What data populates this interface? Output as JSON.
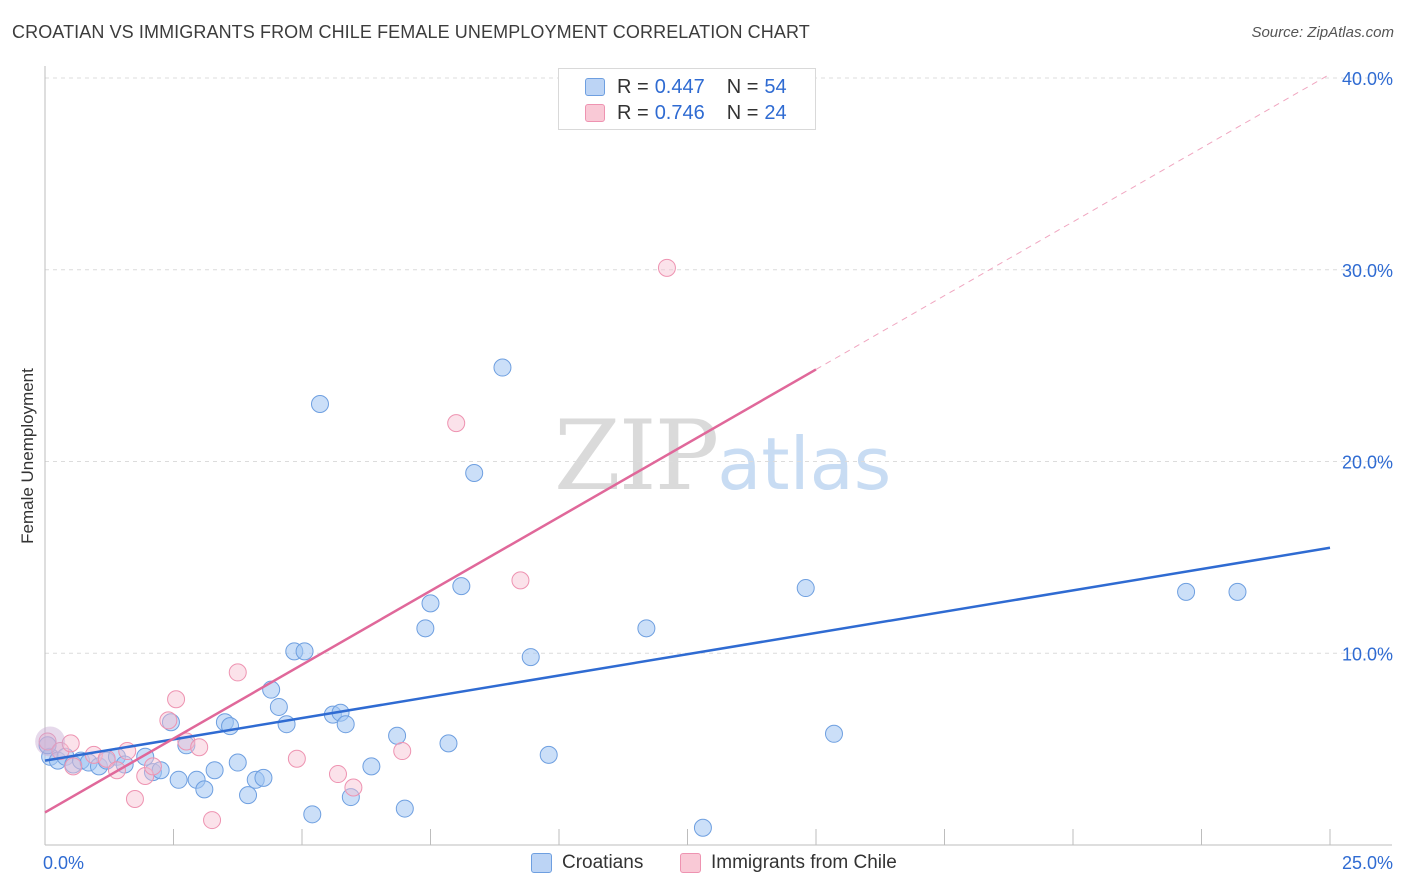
{
  "header": {
    "title": "CROATIAN VS IMMIGRANTS FROM CHILE FEMALE UNEMPLOYMENT CORRELATION CHART",
    "source": "Source: ZipAtlas.com"
  },
  "legend": {
    "series1": {
      "r_label": "R =",
      "r_value": "0.447",
      "n_label": "N =",
      "n_value": "54"
    },
    "series2": {
      "r_label": "R =",
      "r_value": "0.746",
      "n_label": "N =",
      "n_value": "24"
    }
  },
  "bottom_legend": {
    "series1": "Croatians",
    "series2": "Immigrants from Chile"
  },
  "watermark": {
    "zip": "ZIP",
    "atlas": "atlas"
  },
  "colors": {
    "blue": "#2f6bd2",
    "blue_fill": "#bcd4f5",
    "pink": "#e0689a",
    "pink_fill": "#f9c9d6"
  },
  "chart_data": {
    "type": "scatter",
    "title": "CROATIAN VS IMMIGRANTS FROM CHILE FEMALE UNEMPLOYMENT CORRELATION CHART",
    "xlabel": "",
    "ylabel": "Female Unemployment",
    "xlim": [
      0,
      25
    ],
    "ylim": [
      0,
      40
    ],
    "x_tick_labels": [
      "0.0%",
      "25.0%"
    ],
    "y_ticks": [
      10,
      20,
      30,
      40
    ],
    "y_tick_labels": [
      "10.0%",
      "20.0%",
      "30.0%",
      "40.0%"
    ],
    "grid": true,
    "series": [
      {
        "name": "Croatians",
        "r": 0.447,
        "n": 54,
        "trend": {
          "x": [
            0,
            25
          ],
          "y": [
            4.4,
            15.5
          ]
        },
        "points": [
          [
            0.1,
            4.6
          ],
          [
            0.25,
            4.4
          ],
          [
            0.4,
            4.6
          ],
          [
            0.55,
            4.2
          ],
          [
            0.7,
            4.4
          ],
          [
            0.85,
            4.3
          ],
          [
            1.05,
            4.1
          ],
          [
            1.2,
            4.4
          ],
          [
            1.4,
            4.6
          ],
          [
            1.55,
            4.2
          ],
          [
            1.95,
            4.6
          ],
          [
            2.1,
            3.8
          ],
          [
            2.25,
            3.9
          ],
          [
            2.45,
            6.4
          ],
          [
            2.6,
            3.4
          ],
          [
            2.75,
            5.2
          ],
          [
            2.95,
            3.4
          ],
          [
            3.1,
            2.9
          ],
          [
            3.3,
            3.9
          ],
          [
            3.5,
            6.4
          ],
          [
            3.6,
            6.2
          ],
          [
            3.75,
            4.3
          ],
          [
            3.95,
            2.6
          ],
          [
            4.1,
            3.4
          ],
          [
            4.25,
            3.5
          ],
          [
            4.4,
            8.1
          ],
          [
            4.55,
            7.2
          ],
          [
            4.7,
            6.3
          ],
          [
            4.85,
            10.1
          ],
          [
            5.05,
            10.1
          ],
          [
            5.2,
            1.6
          ],
          [
            5.35,
            23.0
          ],
          [
            5.6,
            6.8
          ],
          [
            5.75,
            6.9
          ],
          [
            5.85,
            6.3
          ],
          [
            5.95,
            2.5
          ],
          [
            6.35,
            4.1
          ],
          [
            6.85,
            5.7
          ],
          [
            7.0,
            1.9
          ],
          [
            7.4,
            11.3
          ],
          [
            7.5,
            12.6
          ],
          [
            7.85,
            5.3
          ],
          [
            8.1,
            13.5
          ],
          [
            8.35,
            19.4
          ],
          [
            8.9,
            24.9
          ],
          [
            9.45,
            9.8
          ],
          [
            9.8,
            4.7
          ],
          [
            11.7,
            11.3
          ],
          [
            12.8,
            0.9
          ],
          [
            14.8,
            13.4
          ],
          [
            15.35,
            5.8
          ],
          [
            22.2,
            13.2
          ],
          [
            23.2,
            13.2
          ],
          [
            0.05,
            5.2
          ]
        ]
      },
      {
        "name": "Immigrants from Chile",
        "r": 0.746,
        "n": 24,
        "trend": {
          "x": [
            0,
            15
          ],
          "y": [
            1.7,
            24.8
          ]
        },
        "trend_dashed": {
          "x": [
            15,
            25
          ],
          "y": [
            24.8,
            40.2
          ]
        },
        "points": [
          [
            0.05,
            5.4
          ],
          [
            0.3,
            4.9
          ],
          [
            0.55,
            4.1
          ],
          [
            0.95,
            4.7
          ],
          [
            1.2,
            4.5
          ],
          [
            1.4,
            3.9
          ],
          [
            1.6,
            4.9
          ],
          [
            1.75,
            2.4
          ],
          [
            1.95,
            3.6
          ],
          [
            2.1,
            4.1
          ],
          [
            2.4,
            6.5
          ],
          [
            2.55,
            7.6
          ],
          [
            2.75,
            5.4
          ],
          [
            3.0,
            5.1
          ],
          [
            3.25,
            1.3
          ],
          [
            3.75,
            9.0
          ],
          [
            4.9,
            4.5
          ],
          [
            5.7,
            3.7
          ],
          [
            6.0,
            3.0
          ],
          [
            6.95,
            4.9
          ],
          [
            8.0,
            22.0
          ],
          [
            9.25,
            13.8
          ],
          [
            12.1,
            30.1
          ],
          [
            0.5,
            5.3
          ]
        ]
      }
    ]
  }
}
